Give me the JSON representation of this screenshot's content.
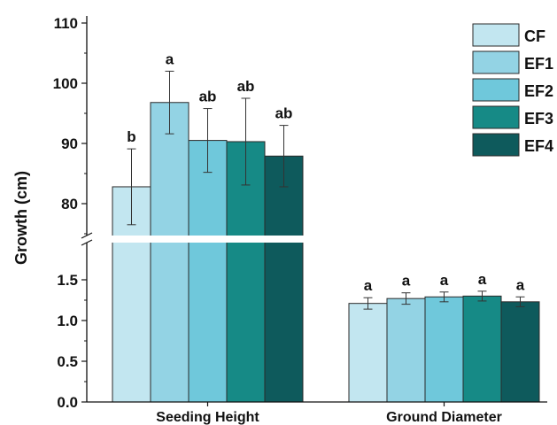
{
  "chart_data": {
    "type": "bar",
    "ylabel": "Growth (cm)",
    "categories": [
      "Seeding Height",
      "Ground Diameter"
    ],
    "axis_break": {
      "lower_range": [
        0,
        2
      ],
      "upper_range": [
        75,
        110
      ]
    },
    "y_ticks_upper": [
      "80",
      "90",
      "100",
      "110"
    ],
    "y_ticks_lower": [
      "0.0",
      "0.5",
      "1.0",
      "1.5"
    ],
    "legend_position": "top-right",
    "series": [
      {
        "name": "CF",
        "color": "#c2e6f0",
        "values": [
          82.8,
          1.21
        ],
        "errors": [
          6.3,
          0.07
        ],
        "labels": [
          "b",
          "a"
        ]
      },
      {
        "name": "EF1",
        "color": "#93d3e4",
        "values": [
          96.8,
          1.27
        ],
        "errors": [
          5.2,
          0.07
        ],
        "labels": [
          "a",
          "a"
        ]
      },
      {
        "name": "EF2",
        "color": "#6fc8db",
        "values": [
          90.5,
          1.29
        ],
        "errors": [
          5.3,
          0.06
        ],
        "labels": [
          "ab",
          "a"
        ]
      },
      {
        "name": "EF3",
        "color": "#168a86",
        "values": [
          90.3,
          1.3
        ],
        "errors": [
          7.2,
          0.06
        ],
        "labels": [
          "ab",
          "a"
        ]
      },
      {
        "name": "EF4",
        "color": "#0e5a5c",
        "values": [
          87.9,
          1.23
        ],
        "errors": [
          5.1,
          0.06
        ],
        "labels": [
          "ab",
          "a"
        ]
      }
    ]
  }
}
